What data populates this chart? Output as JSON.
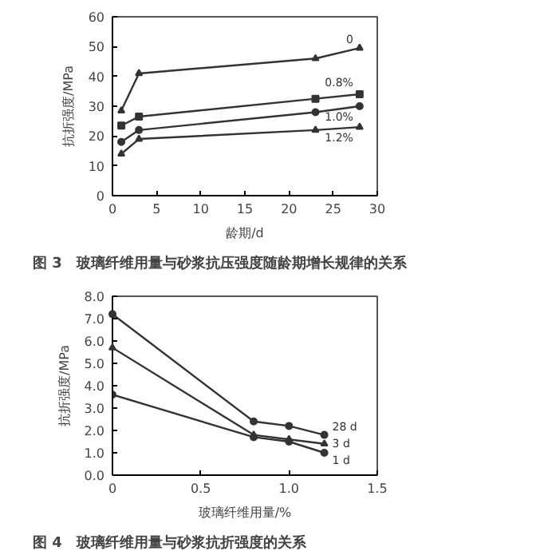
{
  "chart_data": [
    {
      "type": "line",
      "title": "图 3　玻璃纤维用量与砂浆抗压强度随龄期增长规律的关系",
      "xlabel": "龄期/d",
      "ylabel": "抗折强度/MPa",
      "x": [
        1,
        3,
        23,
        28
      ],
      "xlim": [
        0,
        30
      ],
      "xticks": [
        0,
        5,
        10,
        15,
        20,
        25,
        30
      ],
      "ylim": [
        0,
        60
      ],
      "yticks": [
        0,
        10,
        20,
        30,
        40,
        50,
        60
      ],
      "grid": false,
      "series": [
        {
          "name": "0",
          "color": "#333333",
          "marker": "triangle",
          "values": [
            28.5,
            41,
            46,
            49.5
          ]
        },
        {
          "name": "0.8%",
          "color": "#333333",
          "marker": "square",
          "values": [
            23.5,
            26.5,
            32.5,
            34
          ]
        },
        {
          "name": "1.0%",
          "color": "#333333",
          "marker": "circle",
          "values": [
            18,
            22,
            28,
            30
          ]
        },
        {
          "name": "1.2%",
          "color": "#333333",
          "marker": "triangle",
          "values": [
            14,
            19,
            22,
            23
          ]
        }
      ]
    },
    {
      "type": "line",
      "title": "图 4　玻璃纤维用量与砂浆抗折强度的关系",
      "xlabel": "玻璃纤维用量/%",
      "ylabel": "抗折强度/MPa",
      "x": [
        0,
        0.8,
        1.0,
        1.2
      ],
      "xlim": [
        0,
        1.5
      ],
      "xticks": [
        0,
        0.5,
        {
          "value": 1.0,
          "label": "1.0"
        },
        1.5
      ],
      "ylim": [
        0,
        8
      ],
      "yticks": [
        {
          "value": 0,
          "label": "0.0"
        },
        {
          "value": 1,
          "label": "1.0"
        },
        {
          "value": 2,
          "label": "2.0"
        },
        {
          "value": 3,
          "label": "3.0"
        },
        {
          "value": 4,
          "label": "4.0"
        },
        {
          "value": 5,
          "label": "5.0"
        },
        {
          "value": 6,
          "label": "6.0"
        },
        {
          "value": 7,
          "label": "7.0"
        },
        {
          "value": 8,
          "label": "8.0"
        }
      ],
      "grid": false,
      "series": [
        {
          "name": "28 d",
          "color": "#333333",
          "marker": "circle",
          "values": [
            7.2,
            2.4,
            2.2,
            1.8
          ]
        },
        {
          "name": "3 d",
          "color": "#333333",
          "marker": "triangle",
          "values": [
            5.7,
            1.8,
            1.6,
            1.4
          ]
        },
        {
          "name": "1 d",
          "color": "#333333",
          "marker": "circle",
          "values": [
            3.6,
            1.7,
            1.5,
            1.0
          ]
        }
      ]
    }
  ]
}
